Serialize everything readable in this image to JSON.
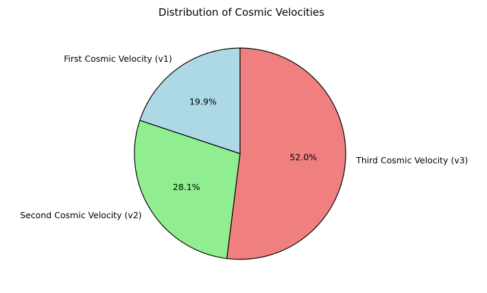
{
  "chart_data": {
    "type": "pie",
    "title": "Distribution of Cosmic Velocities",
    "categories": [
      "First Cosmic Velocity (v1)",
      "Second Cosmic Velocity (v2)",
      "Third Cosmic Velocity (v3)"
    ],
    "values": [
      19.9,
      28.1,
      52.0
    ],
    "percent_labels": [
      "19.9%",
      "28.1%",
      "52.0%"
    ],
    "colors": [
      "#add8e6",
      "#90ee90",
      "#f08080"
    ],
    "edge_color": "#000000",
    "start_angle_deg": 90,
    "direction": "counterclockwise",
    "legend": "none"
  }
}
